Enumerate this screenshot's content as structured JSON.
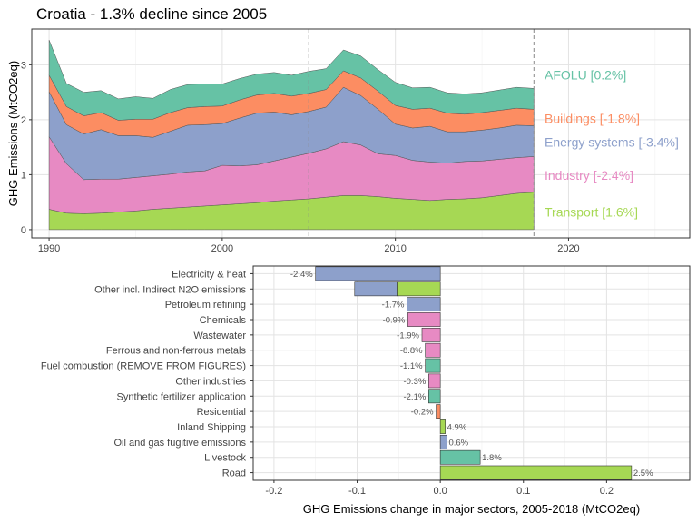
{
  "title": "Croatia - 1.3% decline since 2005",
  "chart_data": [
    {
      "type": "area",
      "title": "Croatia - 1.3% decline since 2005",
      "xlabel": "",
      "ylabel": "GHG Emissions (MtCO2eq)",
      "xlim": [
        1989,
        2027
      ],
      "ylim": [
        -0.15,
        3.65
      ],
      "x_ticks": [
        1990,
        2000,
        2010,
        2020
      ],
      "y_ticks": [
        0,
        1,
        2,
        3
      ],
      "grid": true,
      "reference_lines": [
        2005,
        2018
      ],
      "x": [
        1990,
        1991,
        1992,
        1993,
        1994,
        1995,
        1996,
        1997,
        1998,
        1999,
        2000,
        2001,
        2002,
        2003,
        2004,
        2005,
        2006,
        2007,
        2008,
        2009,
        2010,
        2011,
        2012,
        2013,
        2014,
        2015,
        2016,
        2017,
        2018
      ],
      "series": [
        {
          "name": "Transport",
          "label": "Transport [1.6%]",
          "color": "#a6d854",
          "values": [
            0.37,
            0.3,
            0.29,
            0.3,
            0.32,
            0.34,
            0.37,
            0.39,
            0.41,
            0.43,
            0.45,
            0.47,
            0.49,
            0.52,
            0.54,
            0.56,
            0.59,
            0.62,
            0.62,
            0.6,
            0.57,
            0.55,
            0.53,
            0.55,
            0.56,
            0.58,
            0.62,
            0.66,
            0.68
          ]
        },
        {
          "name": "Industry",
          "label": "Industry [-2.4%]",
          "color": "#e78ac3",
          "values": [
            1.32,
            0.9,
            0.62,
            0.62,
            0.6,
            0.61,
            0.61,
            0.62,
            0.64,
            0.64,
            0.72,
            0.69,
            0.69,
            0.73,
            0.78,
            0.83,
            0.88,
            0.98,
            0.92,
            0.78,
            0.78,
            0.71,
            0.7,
            0.66,
            0.68,
            0.67,
            0.66,
            0.65,
            0.65
          ]
        },
        {
          "name": "Energy systems",
          "label": "Energy systems [-3.4%]",
          "color": "#8da0cb",
          "values": [
            0.82,
            0.71,
            0.83,
            0.9,
            0.79,
            0.76,
            0.7,
            0.78,
            0.85,
            0.84,
            0.76,
            0.87,
            0.94,
            0.89,
            0.77,
            0.76,
            0.76,
            0.99,
            0.9,
            0.81,
            0.57,
            0.59,
            0.65,
            0.57,
            0.54,
            0.56,
            0.57,
            0.59,
            0.56
          ]
        },
        {
          "name": "Buildings",
          "label": "Buildings [-1.8%]",
          "color": "#fc8d62",
          "values": [
            0.3,
            0.33,
            0.33,
            0.31,
            0.28,
            0.3,
            0.33,
            0.34,
            0.32,
            0.33,
            0.32,
            0.33,
            0.33,
            0.34,
            0.34,
            0.33,
            0.32,
            0.3,
            0.32,
            0.33,
            0.34,
            0.34,
            0.33,
            0.34,
            0.32,
            0.32,
            0.32,
            0.31,
            0.3
          ]
        },
        {
          "name": "AFOLU",
          "label": "AFOLU [0.2%]",
          "color": "#66c2a5",
          "values": [
            0.64,
            0.42,
            0.43,
            0.4,
            0.39,
            0.41,
            0.38,
            0.42,
            0.42,
            0.41,
            0.4,
            0.39,
            0.38,
            0.38,
            0.38,
            0.4,
            0.38,
            0.38,
            0.4,
            0.39,
            0.42,
            0.39,
            0.38,
            0.37,
            0.37,
            0.36,
            0.37,
            0.38,
            0.38
          ]
        }
      ]
    },
    {
      "type": "bar",
      "orientation": "horizontal",
      "xlabel": "GHG Emissions change in major sectors, 2005-2018 (MtCO2eq)",
      "ylabel": "",
      "xlim": [
        -0.225,
        0.3
      ],
      "x_ticks": [
        -0.2,
        -0.1,
        0.0,
        0.1,
        0.2
      ],
      "x_tick_labels": [
        "-0.2",
        "-0.1",
        "0.0",
        "0.1",
        "0.2"
      ],
      "grid": true,
      "categories": [
        "Electricity & heat",
        "Other incl. Indirect N2O emissions",
        "Petroleum refining",
        "Chemicals",
        "Wastewater",
        "Ferrous and non-ferrous metals",
        "Fuel combustion (REMOVE FROM FIGURES)",
        "Other industries",
        "Synthetic fertilizer application",
        "Residential",
        "Inland Shipping",
        "Oil and gas fugitive emissions",
        "Livestock",
        "Road"
      ],
      "values": [
        -0.15,
        -0.103,
        -0.04,
        -0.039,
        -0.022,
        -0.018,
        -0.018,
        -0.014,
        -0.014,
        -0.005,
        0.006,
        0.008,
        0.048,
        0.23
      ],
      "value_labels": [
        "-2.4%",
        "",
        "-1.7%",
        "-0.9%",
        "-1.9%",
        "-8.8%",
        "-1.1%",
        "-0.3%",
        "-2.1%",
        "-0.2%",
        "4.9%",
        "0.6%",
        "1.8%",
        "2.5%"
      ],
      "colors": [
        "#8da0cb",
        "#8da0cb",
        "#8da0cb",
        "#e78ac3",
        "#e78ac3",
        "#e78ac3",
        "#66c2a5",
        "#e78ac3",
        "#66c2a5",
        "#fc8d62",
        "#a6d854",
        "#8da0cb",
        "#66c2a5",
        "#a6d854"
      ],
      "split_bar": {
        "category": "Other incl. Indirect N2O emissions",
        "segments": [
          {
            "from": -0.103,
            "to": -0.052,
            "color": "#8da0cb"
          },
          {
            "from": -0.052,
            "to": 0.0,
            "color": "#a6d854"
          }
        ]
      }
    }
  ]
}
